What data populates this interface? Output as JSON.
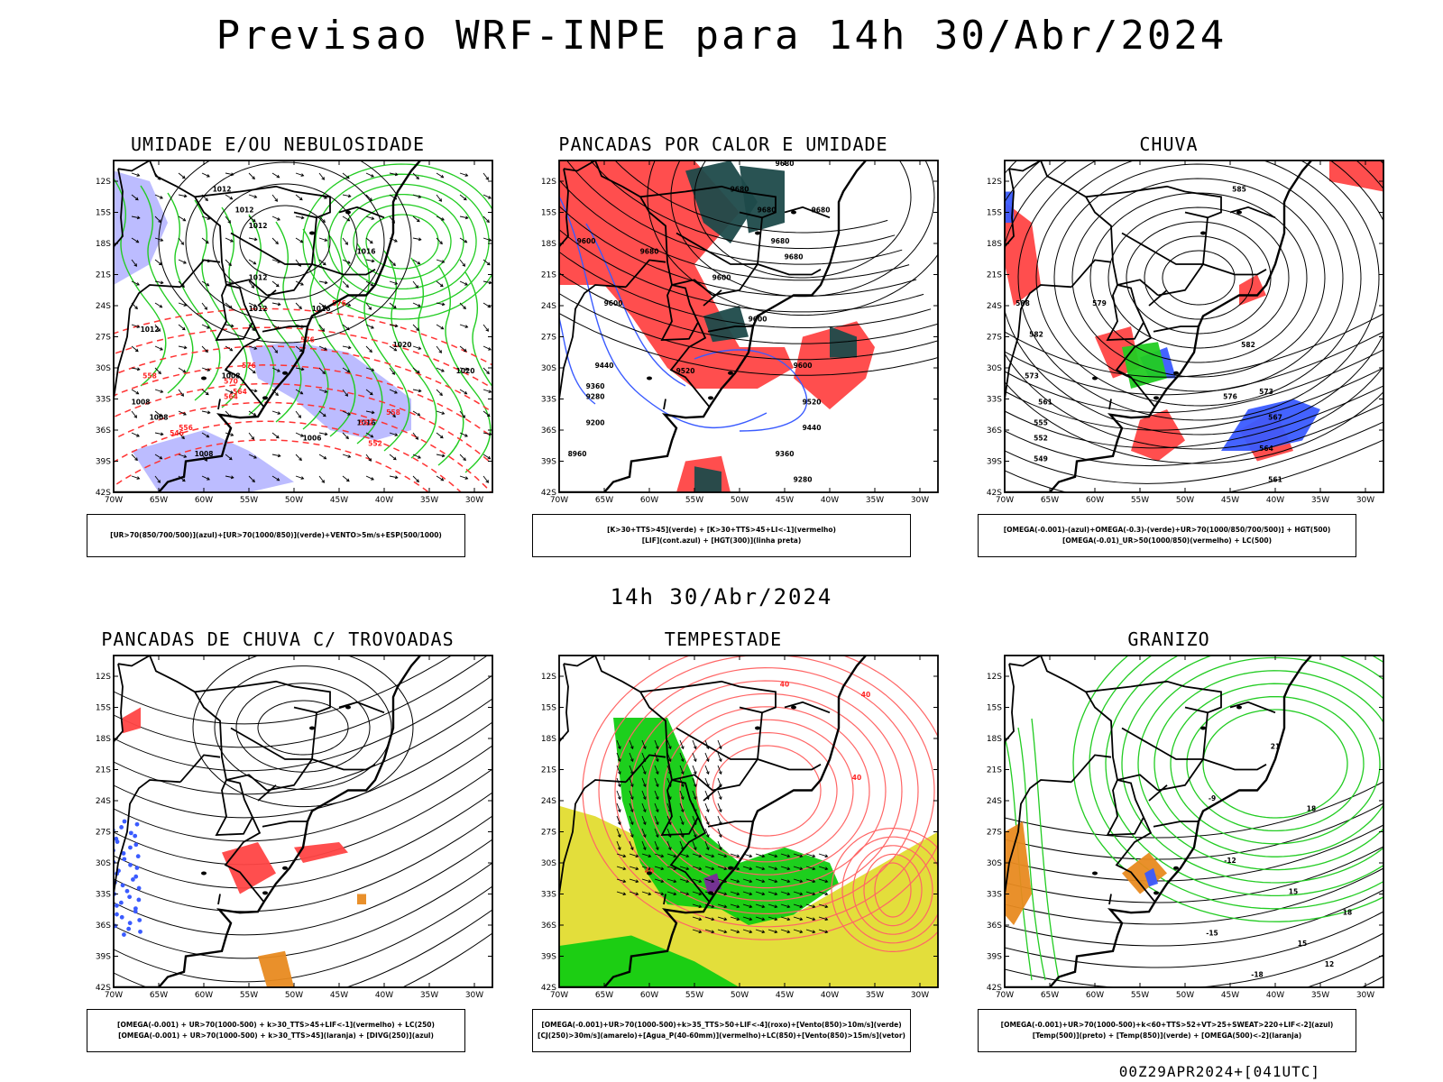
{
  "header": {
    "title": "Previsao WRF-INPE  para 14h 30/Abr/2024"
  },
  "mid_title": "14h 30/Abr/2024",
  "axes": {
    "lat_labels": [
      "12S",
      "15S",
      "18S",
      "21S",
      "24S",
      "27S",
      "30S",
      "33S",
      "36S",
      "39S",
      "42S"
    ],
    "lon_labels": [
      "70W",
      "65W",
      "60W",
      "55W",
      "50W",
      "45W",
      "40W",
      "35W",
      "30W"
    ]
  },
  "colors": {
    "blue": "#3a5bff",
    "light_blue": "#b8b8ff",
    "green": "#22cc22",
    "bright_green": "#11cc11",
    "red": "#ff4444",
    "dark_teal": "#1e4a4a",
    "yellow": "#e2dc30",
    "orange": "#e88a20",
    "purple": "#7a2a9a",
    "salmon": "#ff6666"
  },
  "panels": [
    {
      "title": "UMIDADE E/OU NEBULOSIDADE",
      "legend": [
        "[UR>70(850/700/500)](azul)+[UR>70(1000/850)](verde)+VENTO>5m/s+ESP(500/1000)"
      ],
      "contour_labels": [
        "1012",
        "1012",
        "1012",
        "1016",
        "1012",
        "1012",
        "1016",
        "1012",
        "1008",
        "1008",
        "1008",
        "1008",
        "1016",
        "1020",
        "1020",
        "1006",
        "576",
        "576",
        "576",
        "564",
        "552",
        "556",
        "570",
        "546",
        "558",
        "558",
        "564",
        "552"
      ]
    },
    {
      "title": "PANCADAS POR CALOR E UMIDADE",
      "legend": [
        "[K>30+TTS>45](verde) + [K>30+TTS>45+LI<-1](vermelho)",
        "[LIF](cont.azul) + [HGT(300)](linha preta)"
      ],
      "contour_labels": [
        "9680",
        "9680",
        "9680",
        "9680",
        "9600",
        "9680",
        "9680",
        "9680",
        "9600",
        "9600",
        "9600",
        "9520",
        "9440",
        "9360",
        "9280",
        "9200",
        "9520",
        "9440",
        "9360",
        "9280",
        "8960",
        "9600"
      ]
    },
    {
      "title": "CHUVA",
      "legend": [
        "[OMEGA(-0.001)-(azul)+OMEGA(-0.3)-(verde)+UR>70(1000/850/700/500)] + HGT(500)",
        "[OMEGA(-0.01)_UR>50(1000/850)(vermelho) + LC(500)"
      ],
      "contour_labels": [
        "588",
        "582",
        "573",
        "561",
        "555",
        "552",
        "549",
        "585",
        "582",
        "579",
        "576",
        "573",
        "567",
        "564",
        "561"
      ]
    },
    {
      "title": "PANCADAS DE CHUVA C/ TROVOADAS",
      "legend": [
        "[OMEGA(-0.001) + UR>70(1000-500) + k>30_TTS>45+LIF<-1](vermelho) + LC(250)",
        "[OMEGA(-0.001) + UR>70(1000-500) + k>30_TTS>45](laranja) + [DIVG(250)](azul)"
      ],
      "contour_labels": []
    },
    {
      "title": "TEMPESTADE",
      "legend": [
        "[OMEGA(-0.001)+UR>70(1000-500)+k>35_TTS>50+LIF<-4](roxo)+[Vento(850)>10m/s](verde)",
        "[CJ(250)>30m/s](amarelo)+[Agua_P(40-60mm)](vermelho)+LC(850)+[Vento(850)>15m/s](vetor)"
      ],
      "contour_labels": [
        "40",
        "40",
        "40",
        "40"
      ]
    },
    {
      "title": "GRANIZO",
      "legend": [
        "[OMEGA(-0.001)+UR>70(1000-500)+k<60+TTS>52+VT>25+SWEAT>220+LIF<-2](azul)",
        "[Temp(500)](preto) + [Temp(850)](verde) + [OMEGA(500)<-2](laranja)"
      ],
      "contour_labels": [
        "-9",
        "-12",
        "-15",
        "-18",
        "21",
        "18",
        "15",
        "18",
        "15",
        "12"
      ]
    }
  ],
  "footer": "00Z29APR2024+[041UTC]"
}
